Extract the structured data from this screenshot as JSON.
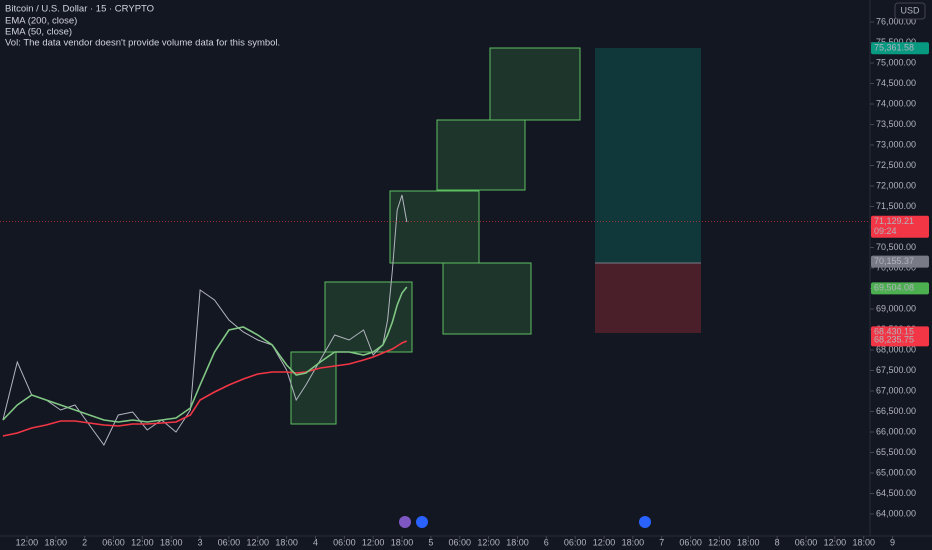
{
  "chart_data": {
    "type": "line",
    "title": "Bitcoin / U.S. Dollar · 15 · CRYPTO",
    "legend_lines": [
      "EMA (200, close)",
      "EMA (50, close)",
      "Vol: The data vendor doesn't provide volume data for this symbol."
    ],
    "currency": "USD",
    "countdown": "09:24",
    "x": [
      -5,
      -2,
      1,
      4,
      7,
      10,
      13,
      16,
      19,
      22,
      25,
      28,
      31,
      34,
      36,
      39,
      42,
      45,
      48,
      51,
      54,
      56,
      58,
      61,
      64,
      67,
      70,
      72,
      74,
      75,
      76,
      77,
      78,
      79
    ],
    "series": [
      {
        "name": "Bitcoin / U.S. Dollar",
        "color": "#b2b5be",
        "values": [
          66293,
          67708,
          66903,
          66781,
          66537,
          66659,
          66171,
          65683,
          66415,
          66488,
          66049,
          66293,
          66000,
          66537,
          69464,
          69220,
          68732,
          68439,
          68244,
          68123,
          67513,
          66781,
          67147,
          67757,
          68366,
          68244,
          68488,
          67879,
          68123,
          68732,
          69952,
          71415,
          71781,
          71122
        ]
      },
      {
        "name": "EMA (200, close)",
        "color": "#f23645",
        "values": [
          65903,
          65976,
          66098,
          66171,
          66269,
          66269,
          66220,
          66171,
          66147,
          66196,
          66196,
          66220,
          66244,
          66415,
          66781,
          66976,
          67147,
          67293,
          67415,
          67464,
          67464,
          67439,
          67464,
          67561,
          67610,
          67659,
          67757,
          67830,
          67927,
          67976,
          68025,
          68098,
          68171,
          68220
        ]
      },
      {
        "name": "EMA (50, close)",
        "color": "#81c784",
        "values": [
          66293,
          66659,
          66903,
          66781,
          66659,
          66537,
          66415,
          66293,
          66244,
          66293,
          66244,
          66293,
          66342,
          66586,
          67147,
          67952,
          68488,
          68561,
          68366,
          68123,
          67635,
          67391,
          67439,
          67708,
          67952,
          67952,
          67879,
          67952,
          68123,
          68366,
          68683,
          69098,
          69391,
          69537
        ]
      }
    ],
    "xlim": [
      -5.6,
      188.2
    ],
    "xticks": [
      {
        "value": 0,
        "label": "12:00"
      },
      {
        "value": 6,
        "label": "18:00"
      },
      {
        "value": 12,
        "label": "2"
      },
      {
        "value": 18,
        "label": "06:00"
      },
      {
        "value": 24,
        "label": "12:00"
      },
      {
        "value": 30,
        "label": "18:00"
      },
      {
        "value": 36,
        "label": "3"
      },
      {
        "value": 42,
        "label": "06:00"
      },
      {
        "value": 48,
        "label": "12:00"
      },
      {
        "value": 54,
        "label": "18:00"
      },
      {
        "value": 60,
        "label": "4"
      },
      {
        "value": 66,
        "label": "06:00"
      },
      {
        "value": 72,
        "label": "12:00"
      },
      {
        "value": 78,
        "label": "18:00"
      },
      {
        "value": 84,
        "label": "5"
      },
      {
        "value": 90,
        "label": "06:00"
      },
      {
        "value": 96,
        "label": "12:00"
      },
      {
        "value": 102,
        "label": "18:00"
      },
      {
        "value": 108,
        "label": "6"
      },
      {
        "value": 114,
        "label": "06:00"
      },
      {
        "value": 120,
        "label": "12:00"
      },
      {
        "value": 126,
        "label": "18:00"
      },
      {
        "value": 132,
        "label": "7"
      },
      {
        "value": 138,
        "label": "06:00"
      },
      {
        "value": 144,
        "label": "12:00"
      },
      {
        "value": 150,
        "label": "18:00"
      },
      {
        "value": 156,
        "label": "8"
      },
      {
        "value": 162,
        "label": "06:00"
      },
      {
        "value": 168,
        "label": "12:00"
      },
      {
        "value": 174,
        "label": "18:00"
      },
      {
        "value": 180,
        "label": "9"
      }
    ],
    "ylim": [
      63463,
      76537
    ],
    "yticks": [
      {
        "value": 64000,
        "label": "64,000.00"
      },
      {
        "value": 64500,
        "label": "64,500.00"
      },
      {
        "value": 65000,
        "label": "65,000.00"
      },
      {
        "value": 65500,
        "label": "65,500.00"
      },
      {
        "value": 66000,
        "label": "66,000.00"
      },
      {
        "value": 66500,
        "label": "66,500.00"
      },
      {
        "value": 67000,
        "label": "67,000.00"
      },
      {
        "value": 67500,
        "label": "67,500.00"
      },
      {
        "value": 68000,
        "label": "68,000.00"
      },
      {
        "value": 68500,
        "label": "68,500.00"
      },
      {
        "value": 69000,
        "label": "69,000.00"
      },
      {
        "value": 69500,
        "label": "69,500.00"
      },
      {
        "value": 70000,
        "label": "70,000.00"
      },
      {
        "value": 70500,
        "label": "70,500.00"
      },
      {
        "value": 71000,
        "label": "71,000.00"
      },
      {
        "value": 71500,
        "label": "71,500.00"
      },
      {
        "value": 72000,
        "label": "72,000.00"
      },
      {
        "value": 72500,
        "label": "72,500.00"
      },
      {
        "value": 73000,
        "label": "73,000.00"
      },
      {
        "value": 73500,
        "label": "73,500.00"
      },
      {
        "value": 74000,
        "label": "74,000.00"
      },
      {
        "value": 74500,
        "label": "74,500.00"
      },
      {
        "value": 75000,
        "label": "75,000.00"
      },
      {
        "value": 75500,
        "label": "75,500.00"
      },
      {
        "value": 76000,
        "label": "76,000.00"
      }
    ],
    "grid": false,
    "price_labels": [
      {
        "value": 75361.58,
        "label": "75,361.58",
        "color": "#089981"
      },
      {
        "value": 71129.21,
        "label": "71,129.21",
        "color": "#f23645"
      },
      {
        "value": 70155.37,
        "label": "70,155.37",
        "color": "#787b86"
      },
      {
        "value": 69504.08,
        "label": "69,504.08",
        "color": "#4caf50"
      },
      {
        "value": 68430.15,
        "label": "68,430.15",
        "color": "#f23645"
      },
      {
        "value": 68235.75,
        "label": "68,235.75",
        "color": "#f23645"
      }
    ]
  }
}
